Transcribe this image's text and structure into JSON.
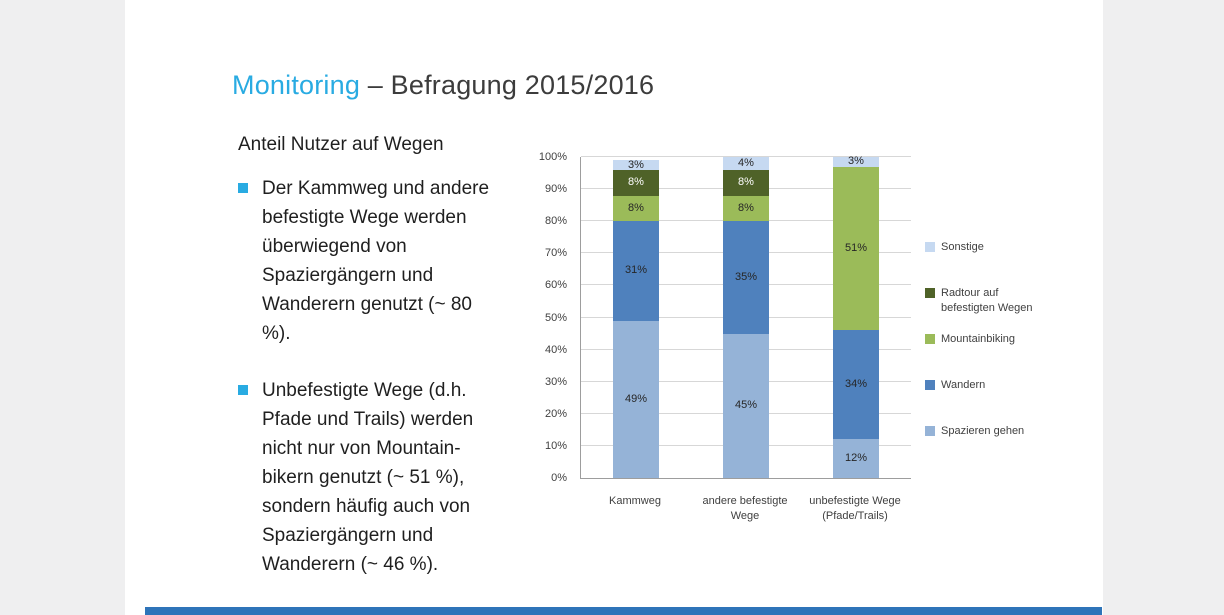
{
  "slide": {
    "title": {
      "highlight": "Monitoring",
      "rest": " – Befragung 2015/2016"
    },
    "heading": "Anteil Nutzer auf Wegen",
    "bullets": [
      "Der Kammweg und andere befestigte Wege werden überwiegend von Spaziergängern und Wanderern genutzt (~ 80 %).",
      "Unbefestigte Wege (d.h. Pfade und Trails) werden nicht nur von Mountain-bikern genutzt (~ 51 %), sondern häufig auch von Spaziergängern und Wanderern (~ 46 %)."
    ],
    "accent_color": "#29abe2",
    "footer_bar_color": "#2e74b9"
  },
  "chart_data": {
    "type": "bar",
    "stacked": true,
    "title": "",
    "categories": [
      "Kammweg",
      "andere befestigte Wege",
      "unbefestigte Wege (Pfade/Trails)"
    ],
    "series": [
      {
        "name": "Spazieren gehen",
        "color": "#95b3d7",
        "label_color": "#262626",
        "values": [
          49,
          45,
          12
        ]
      },
      {
        "name": "Wandern",
        "color": "#4f81bd",
        "label_color": "#262626",
        "values": [
          31,
          35,
          34
        ]
      },
      {
        "name": "Mountainbiking",
        "color": "#9bbb59",
        "label_color": "#262626",
        "values": [
          8,
          8,
          51
        ]
      },
      {
        "name": "Radtour auf befestigten Wegen",
        "color": "#4f6228",
        "label_color": "#ffffff",
        "values": [
          8,
          8,
          0
        ]
      },
      {
        "name": "Sonstige",
        "color": "#c6d9f1",
        "label_color": "#262626",
        "values": [
          3,
          4,
          3
        ]
      }
    ],
    "ylim": [
      0,
      100
    ],
    "ytick_step": 10,
    "ytick_suffix": "%",
    "grid": true,
    "legend_position": "right",
    "legend_order": "reversed"
  }
}
